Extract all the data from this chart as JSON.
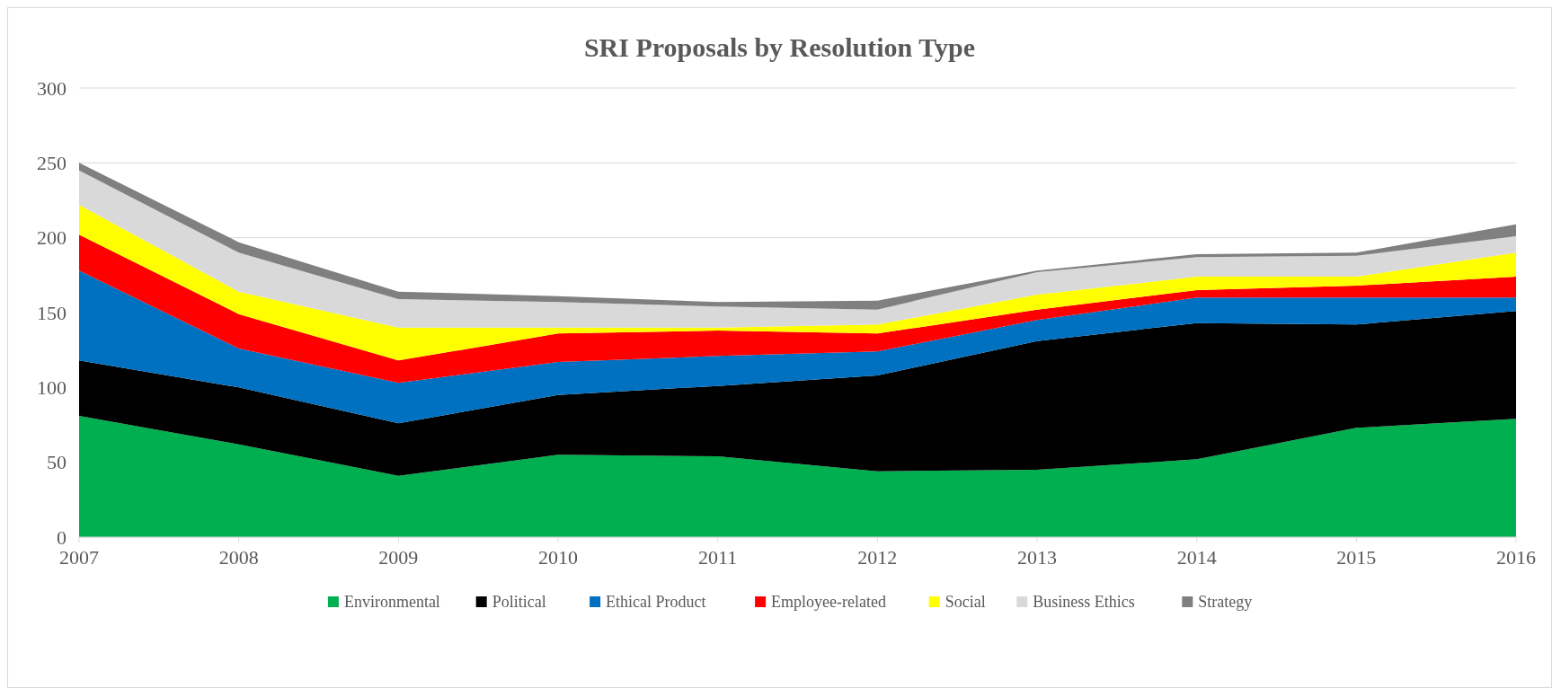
{
  "chart_data": {
    "type": "area",
    "title": "SRI Proposals by Resolution Type",
    "stacked": true,
    "categories": [
      "2007",
      "2008",
      "2009",
      "2010",
      "2011",
      "2012",
      "2013",
      "2014",
      "2015",
      "2016"
    ],
    "series": [
      {
        "name": "Environmental",
        "color": "#00b050",
        "values": [
          81,
          62,
          41,
          55,
          54,
          44,
          45,
          52,
          73,
          79
        ]
      },
      {
        "name": "Political",
        "color": "#000000",
        "values": [
          37,
          38,
          35,
          40,
          47,
          64,
          86,
          91,
          69,
          72
        ]
      },
      {
        "name": "Ethical Product",
        "color": "#0070c0",
        "values": [
          60,
          26,
          27,
          22,
          20,
          16,
          14,
          17,
          18,
          9
        ]
      },
      {
        "name": "Employee-related",
        "color": "#ff0000",
        "values": [
          24,
          23,
          15,
          19,
          17,
          12,
          7,
          5,
          8,
          14
        ]
      },
      {
        "name": "Social",
        "color": "#ffff00",
        "values": [
          20,
          15,
          22,
          4,
          2,
          6,
          10,
          9,
          6,
          16
        ]
      },
      {
        "name": "Business Ethics",
        "color": "#d9d9d9",
        "values": [
          23,
          26,
          19,
          17,
          14,
          10,
          15,
          13,
          14,
          11
        ]
      },
      {
        "name": "Strategy",
        "color": "#808080",
        "values": [
          5,
          7,
          5,
          4,
          3,
          6,
          1,
          2,
          2,
          8
        ]
      }
    ],
    "ylim": [
      0,
      300
    ],
    "yticks": [
      0,
      50,
      100,
      150,
      200,
      250,
      300
    ],
    "grid": "y",
    "legend": "bottom"
  }
}
